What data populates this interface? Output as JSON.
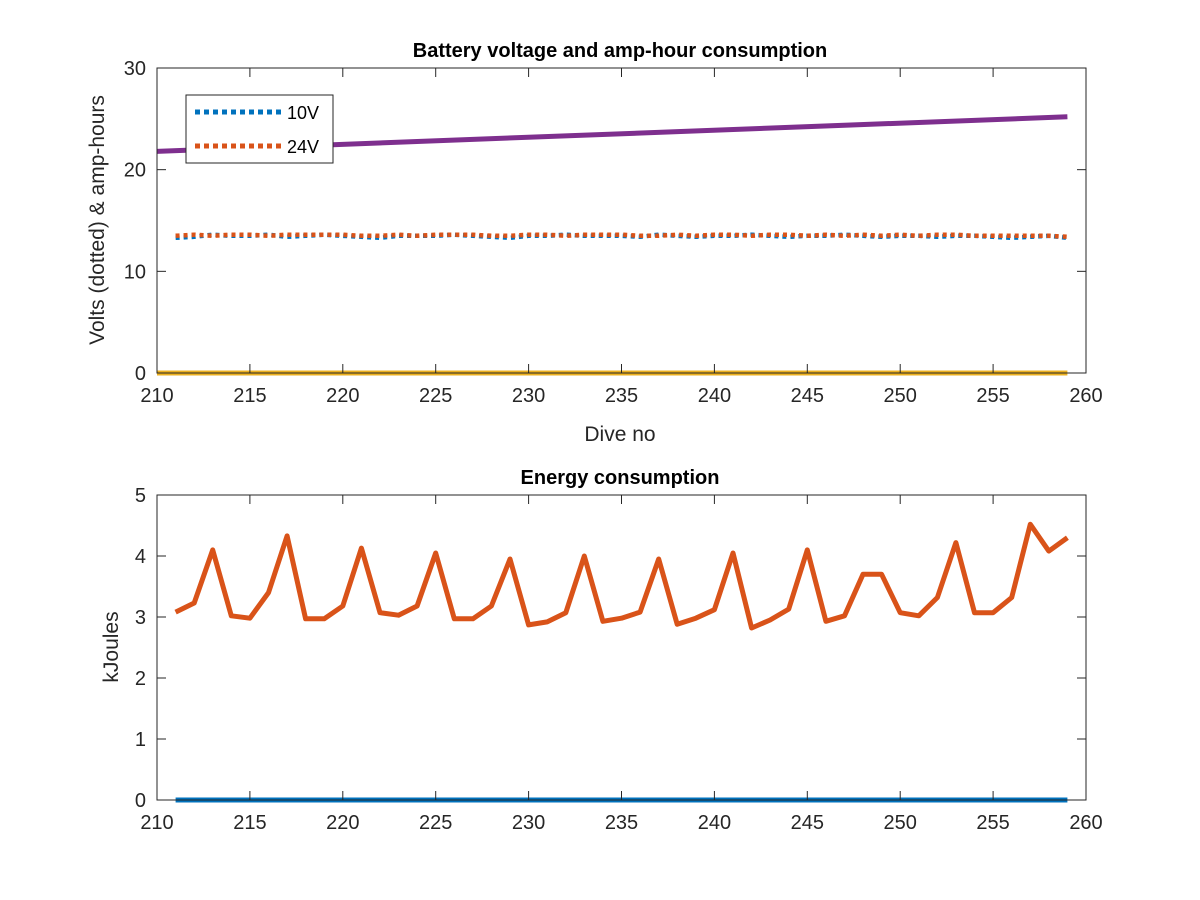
{
  "chart_data": [
    {
      "type": "line",
      "title": "Battery voltage and amp-hour consumption",
      "xlabel": "Dive no",
      "ylabel": "Volts (dotted) & amp-hours",
      "xlim": [
        210,
        260
      ],
      "ylim": [
        0,
        30
      ],
      "xticks": [
        210,
        215,
        220,
        225,
        230,
        235,
        240,
        245,
        250,
        255,
        260
      ],
      "yticks": [
        0,
        10,
        20,
        30
      ],
      "grid": false,
      "legend_position": "top-left",
      "series": [
        {
          "name": "10V",
          "style": "dotted",
          "color": "#0072BD",
          "in_legend": true,
          "x": [
            211,
            212,
            213,
            214,
            215,
            216,
            217,
            218,
            219,
            220,
            221,
            222,
            223,
            224,
            225,
            226,
            227,
            228,
            229,
            230,
            231,
            232,
            233,
            234,
            235,
            236,
            237,
            238,
            239,
            240,
            241,
            242,
            243,
            244,
            245,
            246,
            247,
            248,
            249,
            250,
            251,
            252,
            253,
            254,
            255,
            256,
            257,
            258,
            259
          ],
          "y": [
            13.3,
            13.4,
            13.6,
            13.5,
            13.5,
            13.6,
            13.4,
            13.5,
            13.6,
            13.5,
            13.4,
            13.3,
            13.5,
            13.5,
            13.5,
            13.6,
            13.5,
            13.4,
            13.3,
            13.5,
            13.5,
            13.6,
            13.5,
            13.5,
            13.5,
            13.4,
            13.6,
            13.5,
            13.4,
            13.5,
            13.5,
            13.6,
            13.5,
            13.4,
            13.5,
            13.5,
            13.6,
            13.5,
            13.4,
            13.5,
            13.5,
            13.4,
            13.5,
            13.5,
            13.4,
            13.3,
            13.4,
            13.5,
            13.3
          ]
        },
        {
          "name": "24V",
          "style": "dotted",
          "color": "#D95319",
          "in_legend": true,
          "x": [
            211,
            212,
            213,
            214,
            215,
            216,
            217,
            218,
            219,
            220,
            221,
            222,
            223,
            224,
            225,
            226,
            227,
            228,
            229,
            230,
            231,
            232,
            233,
            234,
            235,
            236,
            237,
            238,
            239,
            240,
            241,
            242,
            243,
            244,
            245,
            246,
            247,
            248,
            249,
            250,
            251,
            252,
            253,
            254,
            255,
            256,
            257,
            258,
            259
          ],
          "y": [
            13.5,
            13.6,
            13.5,
            13.6,
            13.6,
            13.5,
            13.6,
            13.6,
            13.6,
            13.6,
            13.5,
            13.5,
            13.6,
            13.5,
            13.6,
            13.6,
            13.6,
            13.5,
            13.5,
            13.6,
            13.6,
            13.5,
            13.6,
            13.6,
            13.6,
            13.5,
            13.5,
            13.6,
            13.5,
            13.6,
            13.6,
            13.5,
            13.6,
            13.6,
            13.5,
            13.6,
            13.5,
            13.6,
            13.5,
            13.6,
            13.5,
            13.6,
            13.6,
            13.5,
            13.5,
            13.5,
            13.5,
            13.5,
            13.4
          ]
        },
        {
          "style": "solid",
          "color": "#EDB120",
          "in_legend": false,
          "x": [
            210,
            259
          ],
          "y": [
            0,
            0
          ]
        },
        {
          "style": "solid",
          "color": "#7E2F8E",
          "in_legend": false,
          "x": [
            210,
            259
          ],
          "y": [
            21.8,
            25.2
          ]
        }
      ]
    },
    {
      "type": "line",
      "title": "Energy consumption",
      "xlabel": "",
      "ylabel": "kJoules",
      "xlim": [
        210,
        260
      ],
      "ylim": [
        0,
        5
      ],
      "xticks": [
        210,
        215,
        220,
        225,
        230,
        235,
        240,
        245,
        250,
        255,
        260
      ],
      "yticks": [
        0,
        1,
        2,
        3,
        4,
        5
      ],
      "grid": false,
      "series": [
        {
          "style": "solid",
          "color": "#0072BD",
          "x": [
            211,
            259
          ],
          "y": [
            0,
            0
          ]
        },
        {
          "style": "solid",
          "color": "#D95319",
          "x": [
            211,
            212,
            213,
            214,
            215,
            216,
            217,
            218,
            219,
            220,
            221,
            222,
            223,
            224,
            225,
            226,
            227,
            228,
            229,
            230,
            231,
            232,
            233,
            234,
            235,
            236,
            237,
            238,
            239,
            240,
            241,
            242,
            243,
            244,
            245,
            246,
            247,
            248,
            249,
            250,
            251,
            252,
            253,
            254,
            255,
            256,
            257,
            258,
            259
          ],
          "y": [
            3.08,
            3.23,
            4.1,
            3.02,
            2.98,
            3.4,
            4.33,
            2.97,
            2.97,
            3.18,
            4.13,
            3.07,
            3.03,
            3.18,
            4.05,
            2.97,
            2.97,
            3.18,
            3.95,
            2.87,
            2.92,
            3.07,
            4.0,
            2.93,
            2.98,
            3.08,
            3.95,
            2.88,
            2.98,
            3.12,
            4.05,
            2.82,
            2.95,
            3.13,
            4.1,
            2.93,
            3.02,
            3.7,
            3.7,
            3.07,
            3.02,
            3.32,
            4.22,
            3.07,
            3.07,
            3.32,
            4.52,
            4.08,
            4.3
          ]
        }
      ]
    }
  ]
}
